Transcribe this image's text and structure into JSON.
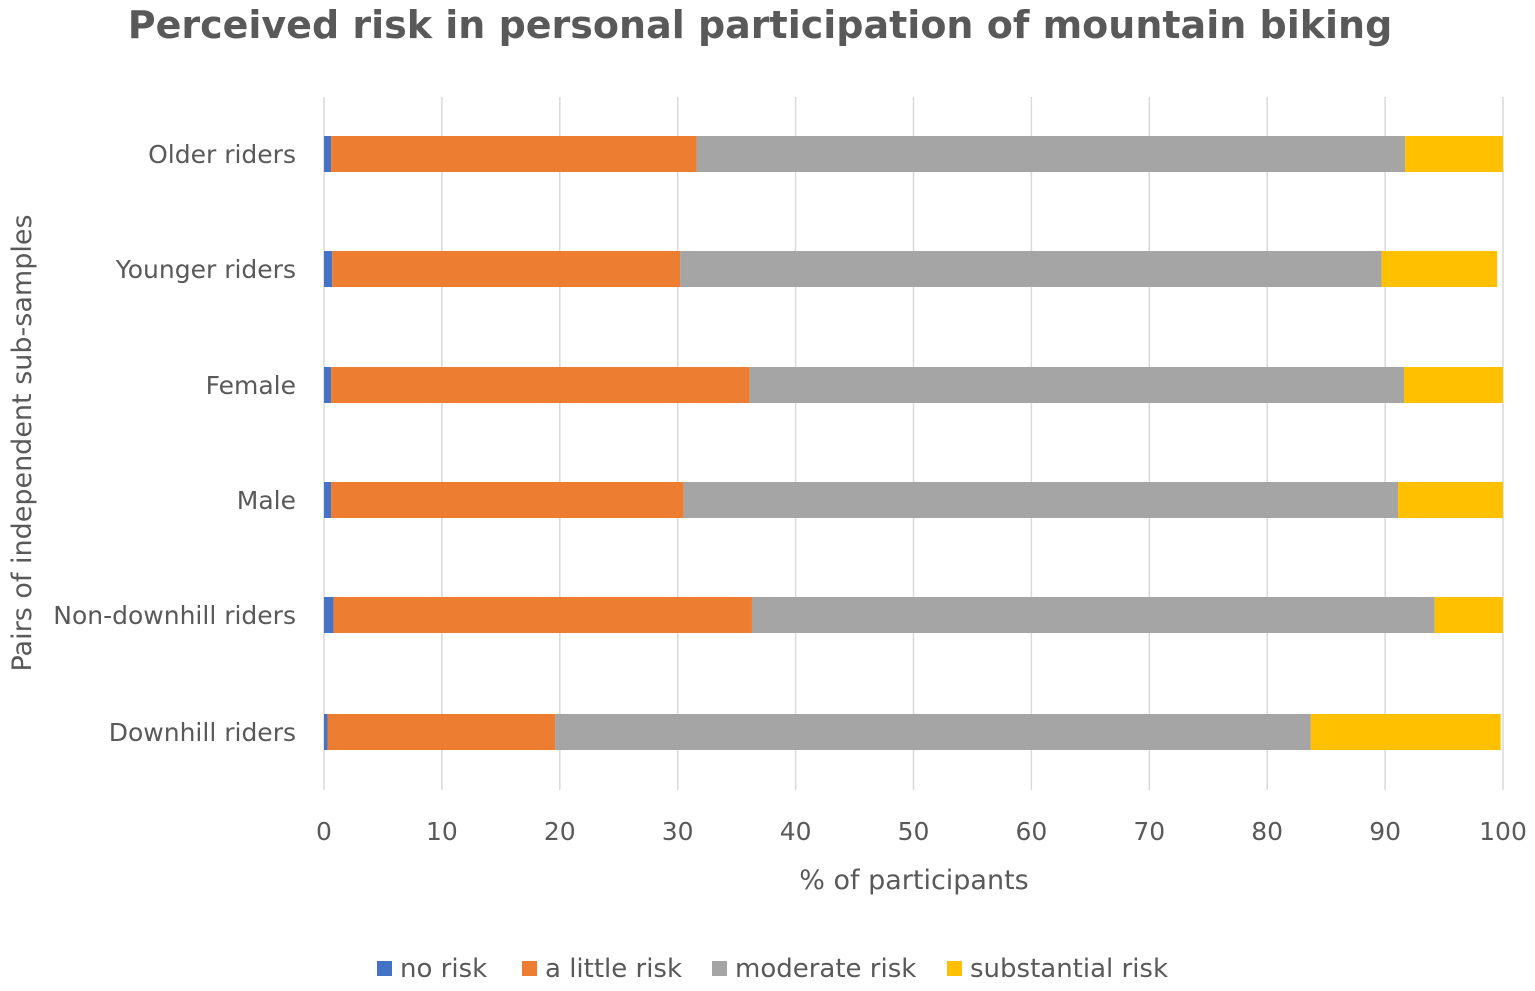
{
  "chart_data": {
    "type": "bar",
    "orientation": "horizontal",
    "stacked": true,
    "title": "Perceived risk in personal participation of mountain biking",
    "xlabel": "% of participants",
    "ylabel": "Pairs of independent sub-samples",
    "xlim": [
      0,
      100
    ],
    "xticks": [
      "0",
      "10",
      "20",
      "30",
      "40",
      "50",
      "60",
      "70",
      "80",
      "90",
      "100"
    ],
    "grid": true,
    "legend_position": "bottom",
    "categories": [
      "Older riders",
      "Younger riders",
      "Female",
      "Male",
      "Non-downhill riders",
      "Downhill riders"
    ],
    "series": [
      {
        "name": "no risk",
        "color": "#4472C4",
        "values": [
          0.6,
          0.7,
          0.6,
          0.6,
          0.8,
          0.3
        ]
      },
      {
        "name": "a little risk",
        "color": "#ED7D31",
        "values": [
          31.0,
          29.5,
          35.5,
          29.9,
          35.5,
          19.3
        ]
      },
      {
        "name": "moderate risk",
        "color": "#A5A5A5",
        "values": [
          60.1,
          59.5,
          55.5,
          60.6,
          57.9,
          64.1
        ]
      },
      {
        "name": "substantial risk",
        "color": "#FFC000",
        "values": [
          8.3,
          9.8,
          8.4,
          8.9,
          5.8,
          16.1
        ]
      }
    ]
  }
}
